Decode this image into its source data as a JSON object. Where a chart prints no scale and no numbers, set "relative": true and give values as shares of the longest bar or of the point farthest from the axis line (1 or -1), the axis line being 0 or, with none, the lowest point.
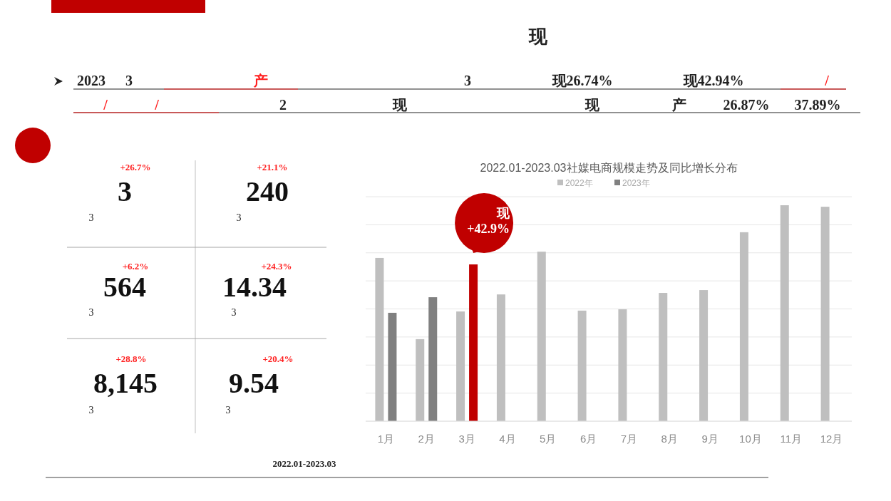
{
  "chart_data": [
    {
      "type": "other",
      "title": "现",
      "annotations": [
        "2023",
        "3",
        "产",
        "3",
        "现26.74%",
        "现42.94%",
        "/",
        "/",
        "/",
        "2",
        "现",
        "现",
        "产",
        "26.87%",
        "37.89%",
        "+26.7%",
        "3",
        "3",
        "+21.1%",
        "240",
        "3",
        "+6.2%",
        "564",
        "3",
        "+24.3%",
        "14.34",
        "3",
        "+28.8%",
        "8,145",
        "3",
        "+20.4%",
        "9.54",
        "3",
        "2022.01-2023.03"
      ]
    },
    {
      "type": "bar",
      "title": "2022.01-2023.03社媒电商规模走势及同比增长分布",
      "relative": true,
      "grid": "y",
      "legend": "top",
      "categories": [
        "1月",
        "2月",
        "3月",
        "4月",
        "5月",
        "6月",
        "7月",
        "8月",
        "9月",
        "10月",
        "11月",
        "12月"
      ],
      "series": [
        {
          "name": "2022年",
          "color": "#bfbfbf",
          "values": [
            0.756,
            0.38,
            0.508,
            0.587,
            0.785,
            0.512,
            0.518,
            0.594,
            0.607,
            0.875,
            1,
            0.993
          ]
        },
        {
          "name": "2023年",
          "color": "#808080",
          "colors": [
            "#808080",
            "#808080",
            "#c00000",
            null,
            null,
            null,
            null,
            null,
            null,
            null,
            null,
            null
          ],
          "values": [
            0.502,
            0.574,
            0.726,
            null,
            null,
            null,
            null,
            null,
            null,
            null,
            null,
            null
          ]
        }
      ],
      "annotations": [
        {
          "text": "现\n+42.9%",
          "x": "3月",
          "y": 0.726
        }
      ]
    }
  ]
}
